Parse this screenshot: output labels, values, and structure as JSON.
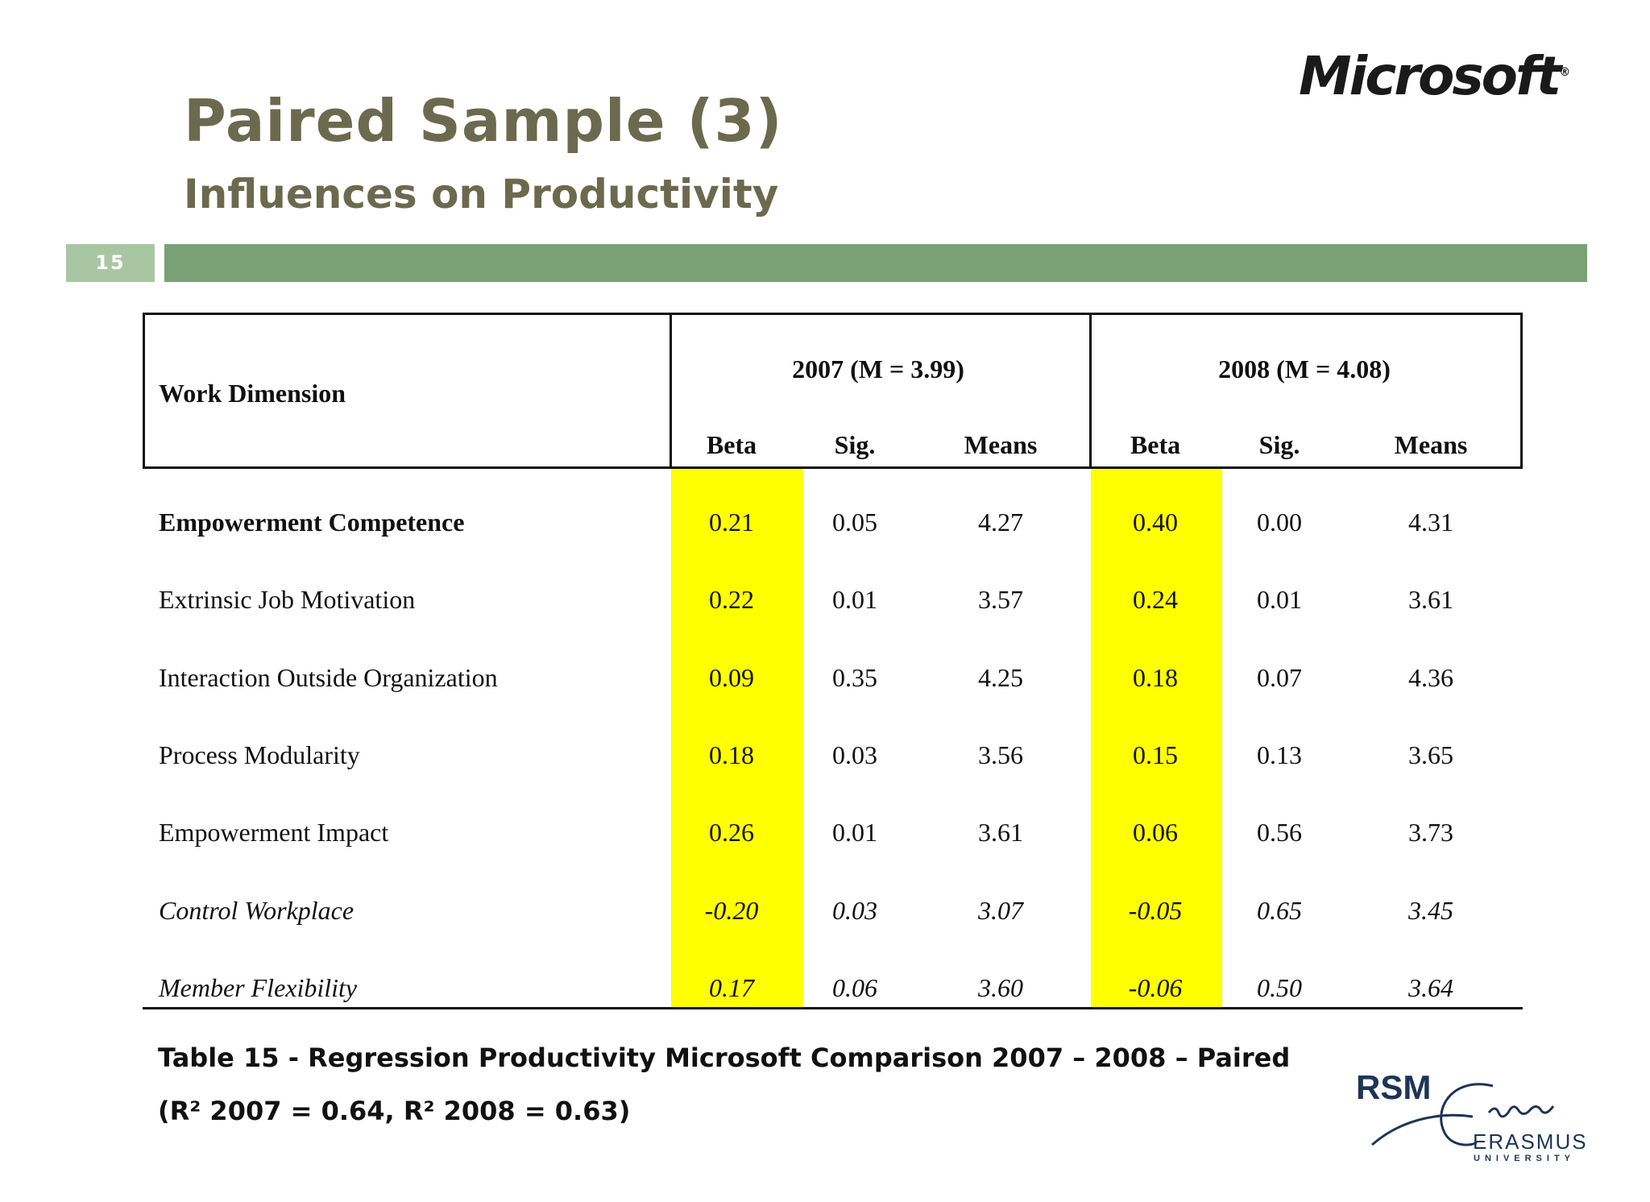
{
  "slide": {
    "title": "Paired Sample (3)",
    "subtitle": "Influences on Productivity",
    "page_number": "15",
    "logo_text": "Microsoft",
    "logo_mark": "®"
  },
  "table": {
    "dimension_header": "Work Dimension",
    "group_2007": "2007 (M = 3.99)",
    "group_2008": "2008 (M = 4.08)",
    "subheaders": [
      "Beta",
      "Sig.",
      "Means",
      "Beta",
      "Sig.",
      "Means"
    ],
    "rows": [
      {
        "label": "Empowerment Competence",
        "values": [
          "0.21",
          "0.05",
          "4.27",
          "0.40",
          "0.00",
          "4.31"
        ],
        "style": "bold"
      },
      {
        "label": "Extrinsic Job Motivation",
        "values": [
          "0.22",
          "0.01",
          "3.57",
          "0.24",
          "0.01",
          "3.61"
        ],
        "style": "normal"
      },
      {
        "label": "Interaction Outside Organization",
        "values": [
          "0.09",
          "0.35",
          "4.25",
          "0.18",
          "0.07",
          "4.36"
        ],
        "style": "normal"
      },
      {
        "label": "Process Modularity",
        "values": [
          "0.18",
          "0.03",
          "3.56",
          "0.15",
          "0.13",
          "3.65"
        ],
        "style": "normal"
      },
      {
        "label": "Empowerment Impact",
        "values": [
          "0.26",
          "0.01",
          "3.61",
          "0.06",
          "0.56",
          "3.73"
        ],
        "style": "normal"
      },
      {
        "label": "Control Workplace",
        "values": [
          "-0.20",
          "0.03",
          "3.07",
          "-0.05",
          "0.65",
          "3.45"
        ],
        "style": "italic"
      },
      {
        "label": "Member Flexibility",
        "values": [
          "0.17",
          "0.06",
          "3.60",
          "-0.06",
          "0.50",
          "3.64"
        ],
        "style": "italic"
      }
    ],
    "highlight_color": "#ffff00"
  },
  "caption": {
    "line1": "Table 15 - Regression Productivity Microsoft Comparison 2007 – 2008 – Paired",
    "line2": "(R² 2007 = 0.64, R² 2008 = 0.63)"
  },
  "footer_logo": {
    "rsm": "RSM",
    "erasmus": "ERASMUS",
    "university": "UNIVERSITY"
  },
  "colors": {
    "title": "#6b6a4e",
    "bar": "#78a276",
    "page_box": "#a9c6a3"
  }
}
